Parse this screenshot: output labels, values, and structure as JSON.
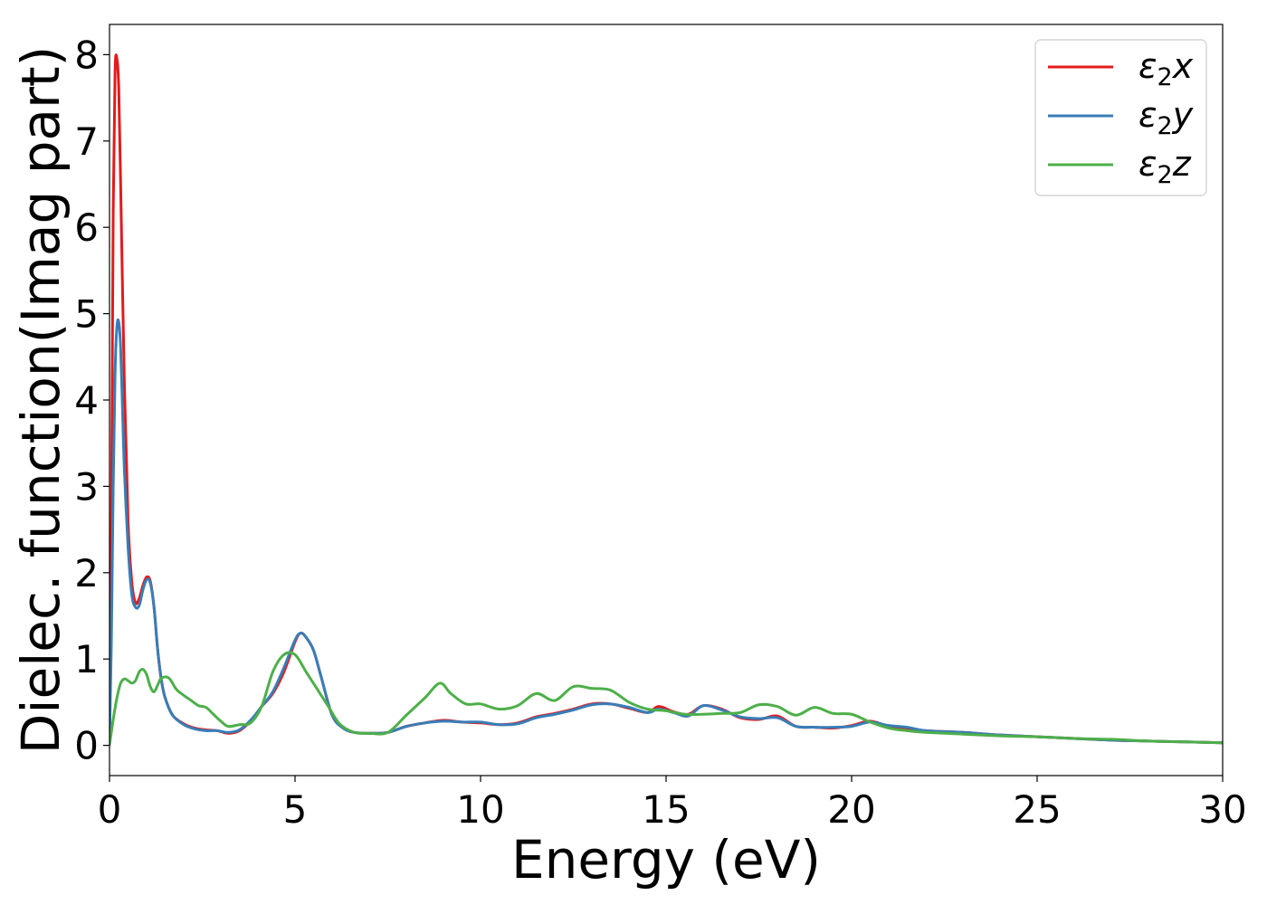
{
  "chart_data": {
    "type": "line",
    "title": "",
    "xlabel": "Energy (eV)",
    "ylabel": "Dielec. function(Imag part)",
    "xlim": [
      0,
      30
    ],
    "ylim": [
      -0.35,
      8.35
    ],
    "xticks": [
      0,
      5,
      10,
      15,
      20,
      25,
      30
    ],
    "yticks": [
      0,
      1,
      2,
      3,
      4,
      5,
      6,
      7,
      8
    ],
    "grid": false,
    "legend_position": "top-right",
    "series": [
      {
        "name": "ε₂x",
        "label_base": "ε",
        "label_sub": "2",
        "label_axis": "x",
        "color": "#e41a1c",
        "x": [
          0,
          0.05,
          0.1,
          0.15,
          0.2,
          0.25,
          0.3,
          0.4,
          0.5,
          0.6,
          0.7,
          0.8,
          0.9,
          1.0,
          1.1,
          1.2,
          1.3,
          1.4,
          1.5,
          1.7,
          2.0,
          2.3,
          2.6,
          2.9,
          3.2,
          3.5,
          3.8,
          4.1,
          4.4,
          4.7,
          5.0,
          5.15,
          5.3,
          5.5,
          5.7,
          6.0,
          6.3,
          6.6,
          7.0,
          7.5,
          8.0,
          8.5,
          9.0,
          9.5,
          10.0,
          10.5,
          11.0,
          11.5,
          12.0,
          12.5,
          13.0,
          13.5,
          14.0,
          14.5,
          14.8,
          15.2,
          15.6,
          16.0,
          16.5,
          17.0,
          17.5,
          18.0,
          18.5,
          19.0,
          19.5,
          20.0,
          20.5,
          21.0,
          21.5,
          22.0,
          23.0,
          24.0,
          25.0,
          26.0,
          27.0,
          28.0,
          29.0,
          30.0
        ],
        "values": [
          0.0,
          2.5,
          6.2,
          7.8,
          7.95,
          7.6,
          6.5,
          4.2,
          2.6,
          1.9,
          1.65,
          1.7,
          1.85,
          1.95,
          1.9,
          1.6,
          1.1,
          0.75,
          0.55,
          0.35,
          0.25,
          0.2,
          0.18,
          0.17,
          0.14,
          0.17,
          0.28,
          0.45,
          0.6,
          0.85,
          1.2,
          1.3,
          1.25,
          1.1,
          0.8,
          0.35,
          0.2,
          0.15,
          0.14,
          0.15,
          0.22,
          0.26,
          0.29,
          0.27,
          0.26,
          0.24,
          0.26,
          0.33,
          0.37,
          0.42,
          0.48,
          0.48,
          0.43,
          0.38,
          0.45,
          0.39,
          0.36,
          0.46,
          0.42,
          0.32,
          0.3,
          0.34,
          0.22,
          0.21,
          0.2,
          0.23,
          0.28,
          0.22,
          0.2,
          0.17,
          0.15,
          0.12,
          0.1,
          0.08,
          0.06,
          0.05,
          0.04,
          0.03
        ]
      },
      {
        "name": "ε₂y",
        "label_base": "ε",
        "label_sub": "2",
        "label_axis": "y",
        "color": "#377eb8",
        "x": [
          0,
          0.05,
          0.1,
          0.15,
          0.2,
          0.25,
          0.3,
          0.35,
          0.4,
          0.5,
          0.6,
          0.7,
          0.8,
          0.9,
          1.0,
          1.1,
          1.2,
          1.3,
          1.4,
          1.5,
          1.7,
          2.0,
          2.3,
          2.6,
          2.9,
          3.2,
          3.5,
          3.8,
          4.1,
          4.4,
          4.7,
          5.0,
          5.15,
          5.3,
          5.5,
          5.7,
          6.0,
          6.3,
          6.6,
          7.0,
          7.5,
          8.0,
          8.5,
          9.0,
          9.5,
          10.0,
          10.5,
          11.0,
          11.5,
          12.0,
          12.5,
          13.0,
          13.5,
          14.0,
          14.5,
          14.8,
          15.2,
          15.6,
          16.0,
          16.5,
          17.0,
          17.5,
          18.0,
          18.5,
          19.0,
          19.5,
          20.0,
          20.5,
          21.0,
          21.5,
          22.0,
          23.0,
          24.0,
          25.0,
          26.0,
          27.0,
          28.0,
          29.0,
          30.0
        ],
        "values": [
          0.0,
          1.2,
          3.0,
          4.3,
          4.85,
          4.9,
          4.6,
          3.9,
          3.2,
          2.3,
          1.75,
          1.6,
          1.62,
          1.8,
          1.92,
          1.88,
          1.6,
          1.1,
          0.75,
          0.55,
          0.35,
          0.24,
          0.19,
          0.17,
          0.17,
          0.15,
          0.18,
          0.29,
          0.45,
          0.62,
          0.9,
          1.22,
          1.3,
          1.25,
          1.1,
          0.8,
          0.35,
          0.2,
          0.15,
          0.14,
          0.15,
          0.22,
          0.26,
          0.28,
          0.27,
          0.27,
          0.24,
          0.25,
          0.32,
          0.36,
          0.41,
          0.47,
          0.48,
          0.44,
          0.38,
          0.42,
          0.38,
          0.34,
          0.46,
          0.41,
          0.33,
          0.31,
          0.32,
          0.22,
          0.21,
          0.21,
          0.22,
          0.27,
          0.23,
          0.21,
          0.17,
          0.15,
          0.12,
          0.1,
          0.08,
          0.06,
          0.05,
          0.04,
          0.03
        ]
      },
      {
        "name": "ε₂z",
        "label_base": "ε",
        "label_sub": "2",
        "label_axis": "z",
        "color": "#4daf4a",
        "x": [
          0,
          0.1,
          0.2,
          0.3,
          0.4,
          0.5,
          0.6,
          0.7,
          0.8,
          0.9,
          1.0,
          1.1,
          1.2,
          1.3,
          1.4,
          1.6,
          1.8,
          2.0,
          2.2,
          2.4,
          2.6,
          2.8,
          3.0,
          3.2,
          3.5,
          3.8,
          4.1,
          4.4,
          4.7,
          5.0,
          5.3,
          5.6,
          5.9,
          6.2,
          6.6,
          7.0,
          7.5,
          8.0,
          8.5,
          8.9,
          9.2,
          9.6,
          10.0,
          10.5,
          11.0,
          11.5,
          12.0,
          12.5,
          13.0,
          13.5,
          14.0,
          14.5,
          15.0,
          15.5,
          16.0,
          16.5,
          17.0,
          17.5,
          18.0,
          18.5,
          19.0,
          19.5,
          20.0,
          20.5,
          21.0,
          21.5,
          22.0,
          23.0,
          24.0,
          25.0,
          26.0,
          27.0,
          28.0,
          29.0,
          30.0
        ],
        "values": [
          0.0,
          0.3,
          0.55,
          0.72,
          0.77,
          0.75,
          0.72,
          0.75,
          0.85,
          0.88,
          0.82,
          0.68,
          0.62,
          0.7,
          0.78,
          0.78,
          0.65,
          0.58,
          0.52,
          0.46,
          0.44,
          0.36,
          0.28,
          0.22,
          0.24,
          0.26,
          0.45,
          0.85,
          1.05,
          1.05,
          0.85,
          0.65,
          0.45,
          0.25,
          0.15,
          0.14,
          0.15,
          0.35,
          0.55,
          0.72,
          0.6,
          0.48,
          0.48,
          0.42,
          0.46,
          0.6,
          0.52,
          0.68,
          0.66,
          0.64,
          0.5,
          0.42,
          0.4,
          0.36,
          0.36,
          0.37,
          0.38,
          0.47,
          0.45,
          0.35,
          0.44,
          0.37,
          0.36,
          0.27,
          0.2,
          0.17,
          0.15,
          0.13,
          0.11,
          0.1,
          0.08,
          0.07,
          0.05,
          0.04,
          0.03
        ]
      }
    ]
  }
}
